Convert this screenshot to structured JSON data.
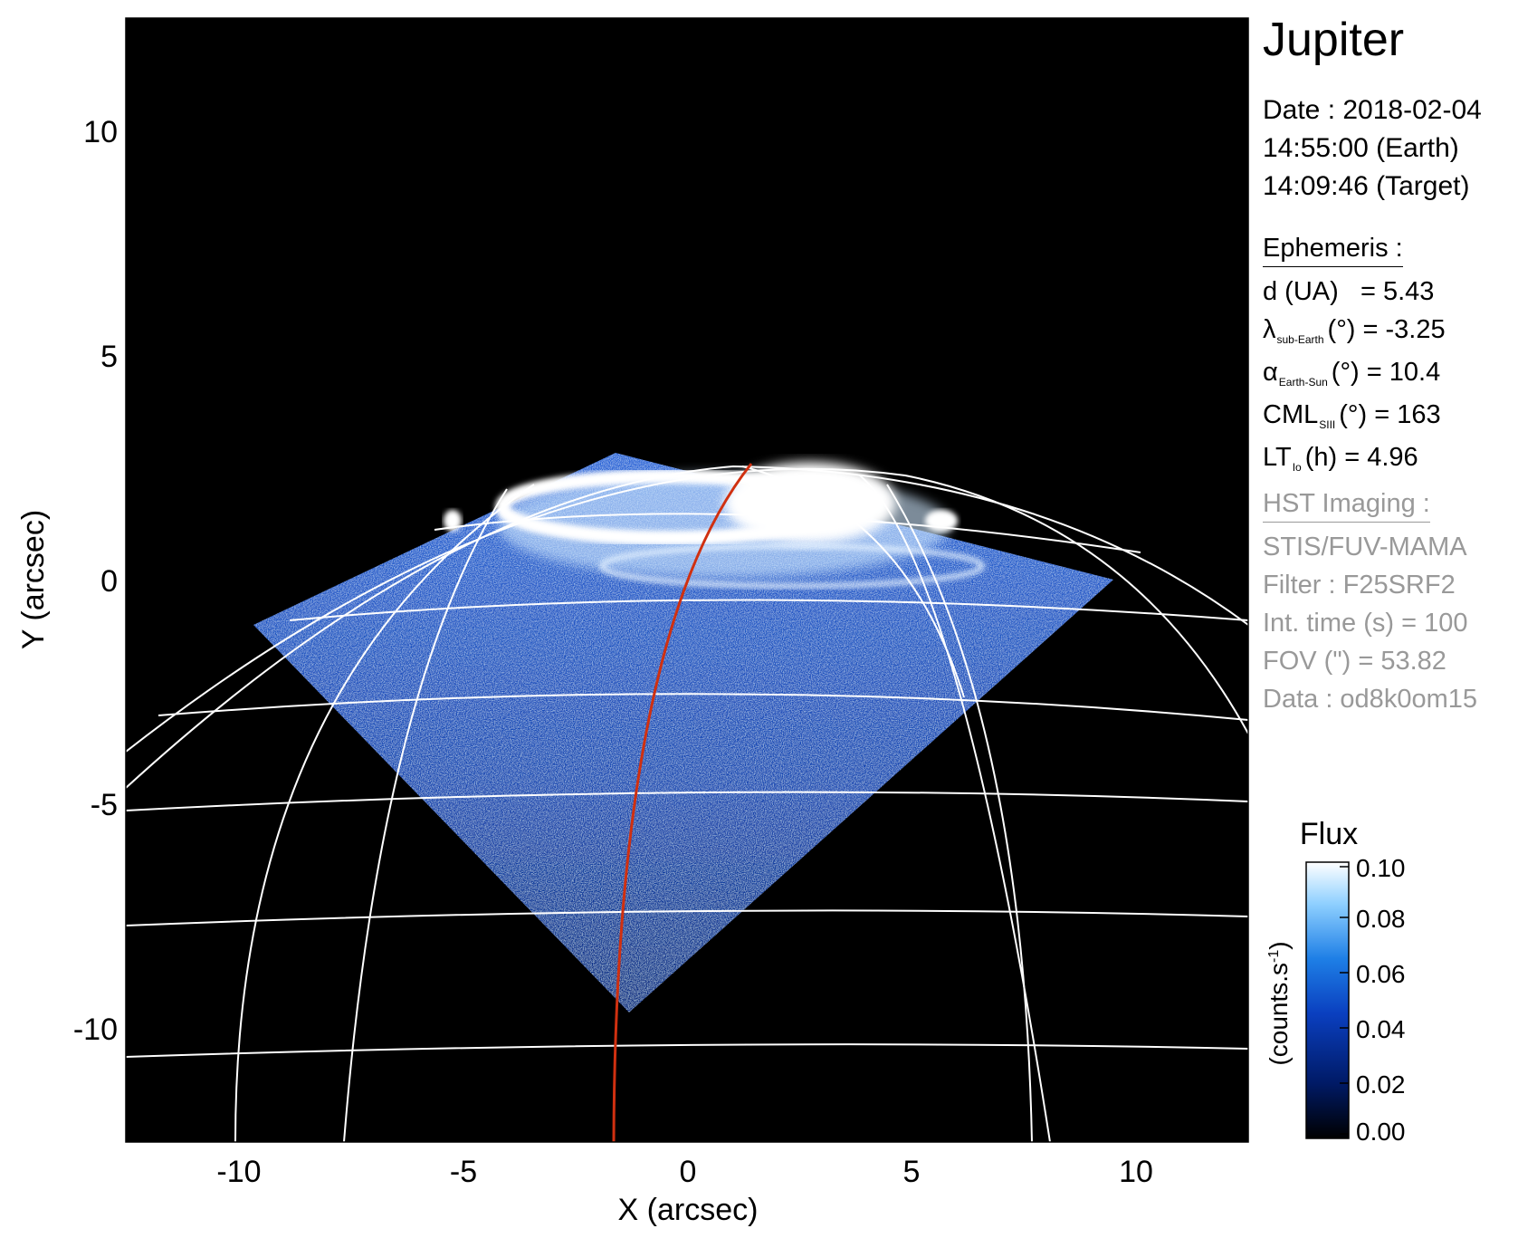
{
  "plot": {
    "title": "Jupiter",
    "xlabel": "X (arcsec)",
    "ylabel": "Y (arcsec)",
    "x_ticks": [
      "-10",
      "-5",
      "0",
      "5",
      "10"
    ],
    "y_ticks": [
      "10",
      "5",
      "0",
      "-5",
      "-10"
    ],
    "xlim": [
      -12.5,
      12.5
    ],
    "ylim": [
      -12.5,
      12.5
    ]
  },
  "date": {
    "line1": "Date : 2018-02-04",
    "line2": "14:55:00 (Earth)",
    "line3": "14:09:46 (Target)"
  },
  "ephemeris": {
    "heading": "Ephemeris :",
    "d_label": "d (UA)",
    "d_value": "= 5.43",
    "lambda_symbol": "λ",
    "lambda_sub": "sub-Earth",
    "lambda_value": "(°) = -3.25",
    "alpha_symbol": "α",
    "alpha_sub": "Earth-Sun",
    "alpha_value": "(°) = 10.4",
    "cml_symbol": "CML",
    "cml_sub": "SIII",
    "cml_value": "(°) = 163",
    "lt_symbol": "LT",
    "lt_sub": "Io",
    "lt_value": "(h) = 4.96"
  },
  "hst": {
    "heading": "HST Imaging :",
    "instrument": "STIS/FUV-MAMA",
    "filter": "Filter : F25SRF2",
    "int_time": "Int. time (s) = 100",
    "fov": "FOV (\") = 53.82",
    "data_id": "Data : od8k0om15"
  },
  "colorbar": {
    "title": "Flux",
    "unit_label": "(counts.s",
    "unit_sup": "-1",
    "unit_close": ")",
    "ticks": [
      "0.10",
      "0.08",
      "0.06",
      "0.04",
      "0.02",
      "0.00"
    ],
    "range": [
      0.0,
      0.1
    ],
    "colors": [
      "#000000",
      "#001a66",
      "#0a3fbf",
      "#1e7fe6",
      "#8fd0ff",
      "#ffffff"
    ]
  },
  "colors": {
    "background": "#000000",
    "grid": "#ffffff",
    "meridian": "#d03010",
    "hst_text": "#999999"
  }
}
